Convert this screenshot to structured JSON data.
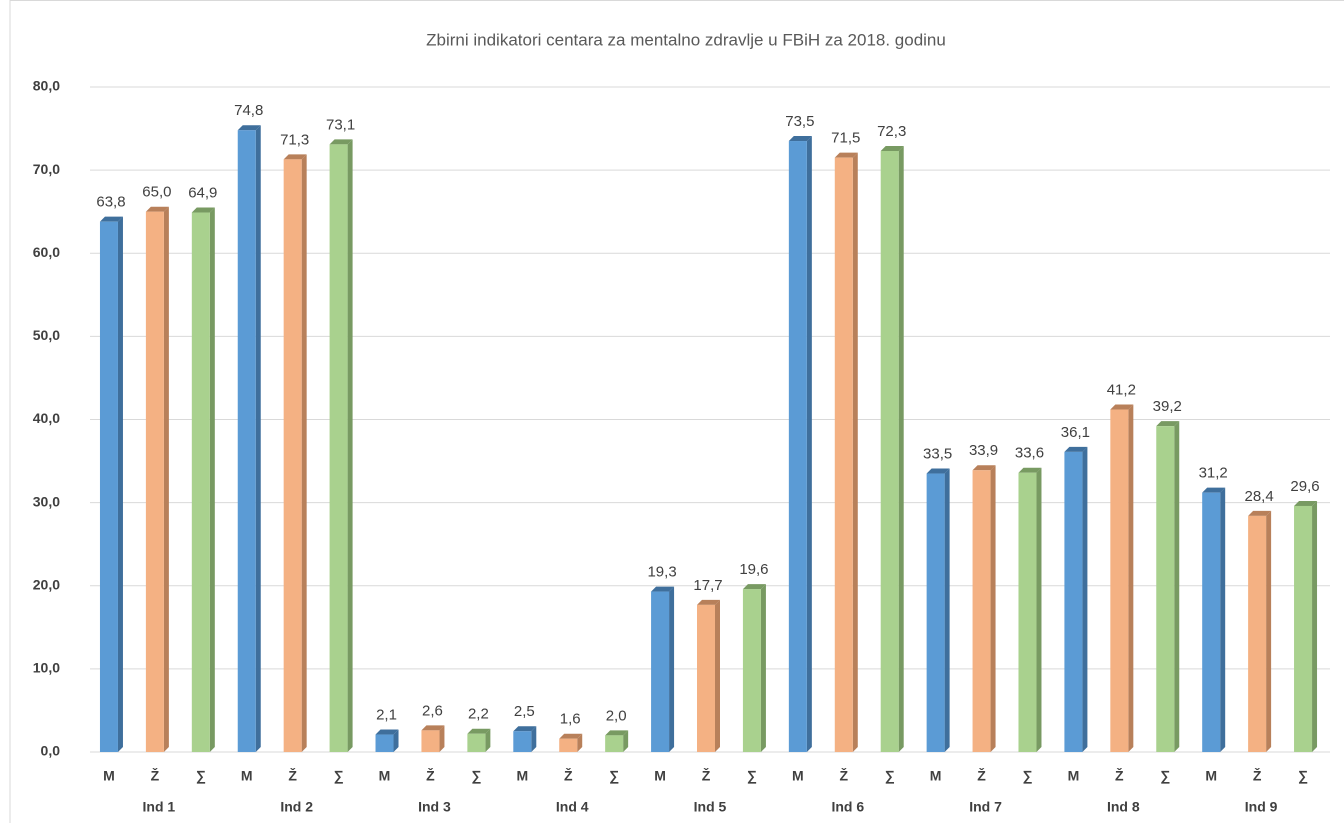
{
  "chart_data": {
    "type": "bar3d",
    "title": "Zbirni indikatori centara za mentalno zdravlje u FBiH za 2018. godinu",
    "categories": [
      "Ind 1",
      "Ind 2",
      "Ind 3",
      "Ind 4",
      "Ind 5",
      "Ind 6",
      "Ind 7",
      "Ind 8",
      "Ind 9"
    ],
    "series": [
      {
        "name": "M",
        "color": "#5b9bd5",
        "side_color": "#3f6f9c",
        "values": [
          63.8,
          74.8,
          2.1,
          2.5,
          19.3,
          73.5,
          33.5,
          36.1,
          31.2
        ],
        "value_labels": [
          "63,8",
          "74,8",
          "2,1",
          "2,5",
          "19,3",
          "73,5",
          "33,5",
          "36,1",
          "31,2"
        ]
      },
      {
        "name": "Ž",
        "color": "#f4b183",
        "side_color": "#b8805a",
        "values": [
          65.0,
          71.3,
          2.6,
          1.6,
          17.7,
          71.5,
          33.9,
          41.2,
          28.4
        ],
        "value_labels": [
          "65,0",
          "71,3",
          "2,6",
          "1,6",
          "17,7",
          "71,5",
          "33,9",
          "41,2",
          "28,4"
        ]
      },
      {
        "name": "∑",
        "color": "#a9d18e",
        "side_color": "#789a62",
        "values": [
          64.9,
          73.1,
          2.2,
          2.0,
          19.6,
          72.3,
          33.6,
          39.2,
          29.6
        ],
        "value_labels": [
          "64,9",
          "73,1",
          "2,2",
          "2,0",
          "19,6",
          "72,3",
          "33,6",
          "39,2",
          "29,6"
        ]
      }
    ],
    "ylim": [
      0,
      80
    ],
    "yticks": [
      {
        "value": 0,
        "label": "0,0"
      },
      {
        "value": 10,
        "label": "10,0"
      },
      {
        "value": 20,
        "label": "20,0"
      },
      {
        "value": 30,
        "label": "30,0"
      },
      {
        "value": 40,
        "label": "40,0"
      },
      {
        "value": 50,
        "label": "50,0"
      },
      {
        "value": 60,
        "label": "60,0"
      },
      {
        "value": 70,
        "label": "70,0"
      },
      {
        "value": 80,
        "label": "80,0"
      }
    ],
    "grid": true
  }
}
